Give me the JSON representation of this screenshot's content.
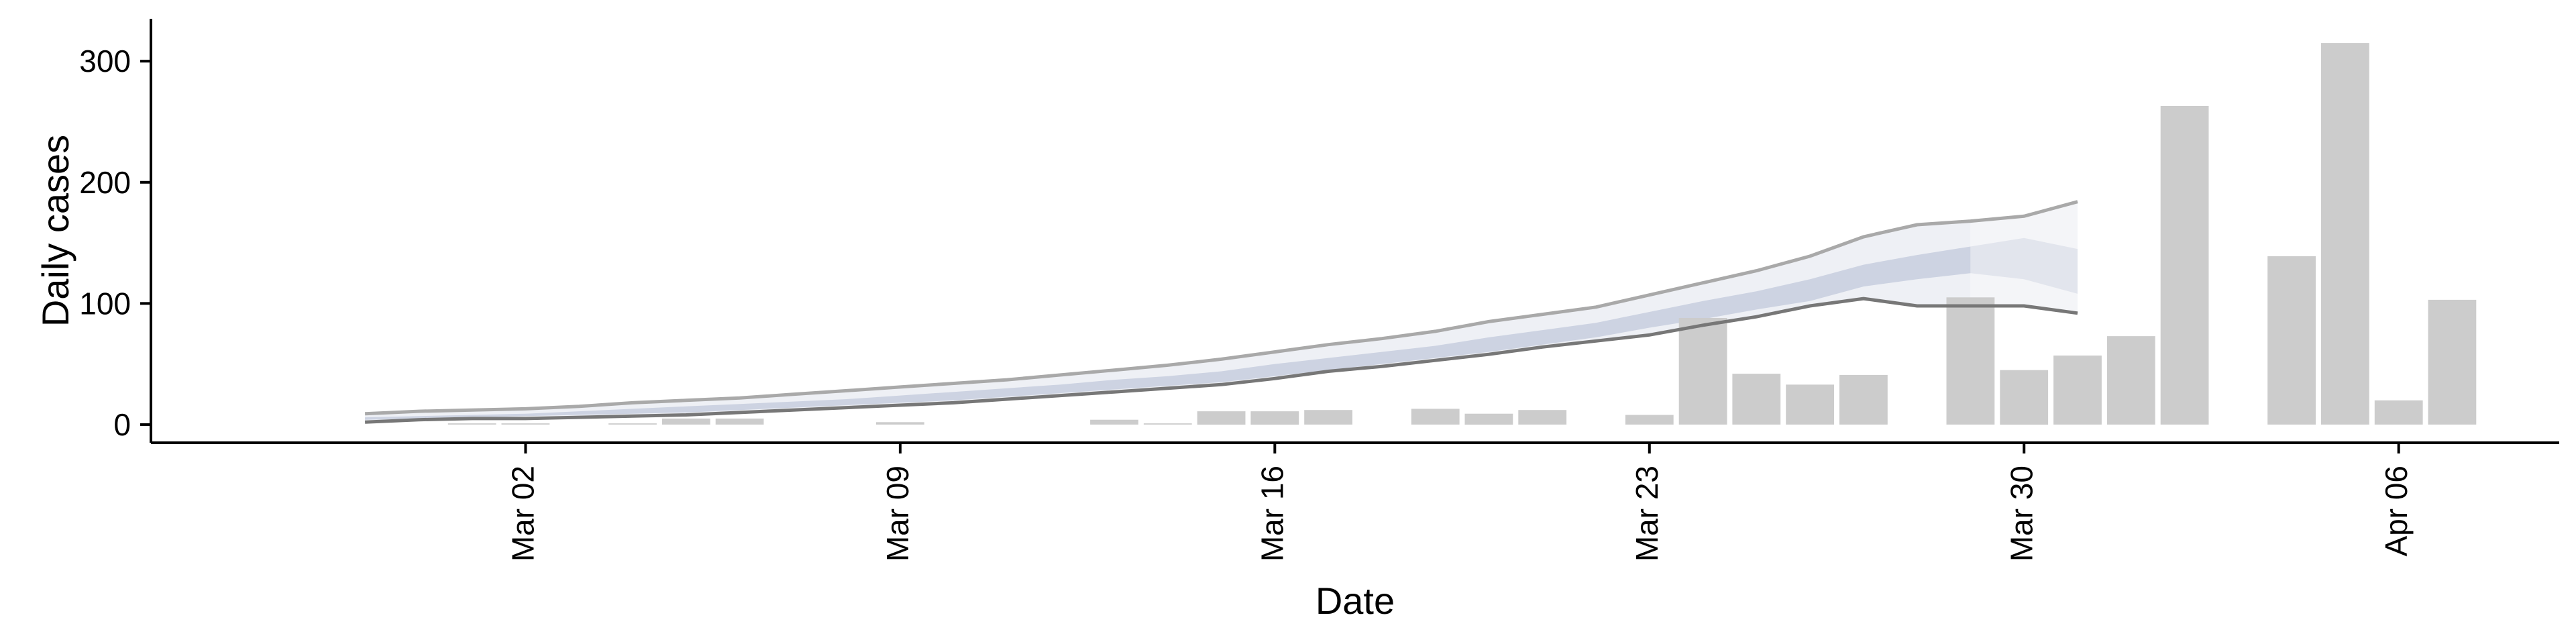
{
  "chart_data": {
    "type": "bar",
    "xlabel": "Date",
    "ylabel": "Daily cases",
    "ylim": [
      -15,
      335
    ],
    "yticks": [
      0,
      100,
      200,
      300
    ],
    "x_tick_labels": [
      {
        "date": "2020-03-02",
        "label": "Mar 02"
      },
      {
        "date": "2020-03-09",
        "label": "Mar 09"
      },
      {
        "date": "2020-03-16",
        "label": "Mar 16"
      },
      {
        "date": "2020-03-23",
        "label": "Mar 23"
      },
      {
        "date": "2020-03-30",
        "label": "Mar 30"
      },
      {
        "date": "2020-04-06",
        "label": "Apr 06"
      }
    ],
    "x_range": [
      "2020-02-24",
      "2020-04-09"
    ],
    "grid": false,
    "colors": {
      "bars": "#cccccc",
      "band_outer": "#eef0f5",
      "band_outer_forecast": "#f4f5f8",
      "band_inner": "#cdd3e2",
      "band_inner_forecast": "#e2e5ed",
      "upper_line": "#a9a9a9",
      "lower_line": "#777777",
      "axis": "#000000"
    },
    "bars": [
      {
        "date": "2020-03-01",
        "value": 1
      },
      {
        "date": "2020-03-02",
        "value": 1
      },
      {
        "date": "2020-03-04",
        "value": 1
      },
      {
        "date": "2020-03-05",
        "value": 5
      },
      {
        "date": "2020-03-06",
        "value": 5
      },
      {
        "date": "2020-03-09",
        "value": 2
      },
      {
        "date": "2020-03-13",
        "value": 4
      },
      {
        "date": "2020-03-14",
        "value": 1
      },
      {
        "date": "2020-03-15",
        "value": 11
      },
      {
        "date": "2020-03-16",
        "value": 11
      },
      {
        "date": "2020-03-17",
        "value": 12
      },
      {
        "date": "2020-03-19",
        "value": 13
      },
      {
        "date": "2020-03-20",
        "value": 9
      },
      {
        "date": "2020-03-21",
        "value": 12
      },
      {
        "date": "2020-03-23",
        "value": 8
      },
      {
        "date": "2020-03-24",
        "value": 88
      },
      {
        "date": "2020-03-25",
        "value": 42
      },
      {
        "date": "2020-03-26",
        "value": 33
      },
      {
        "date": "2020-03-27",
        "value": 41
      },
      {
        "date": "2020-03-29",
        "value": 105
      },
      {
        "date": "2020-03-30",
        "value": 45
      },
      {
        "date": "2020-03-31",
        "value": 57
      },
      {
        "date": "2020-04-01",
        "value": 73
      },
      {
        "date": "2020-04-02",
        "value": 263
      },
      {
        "date": "2020-04-04",
        "value": 139
      },
      {
        "date": "2020-04-05",
        "value": 315
      },
      {
        "date": "2020-04-06",
        "value": 20
      },
      {
        "date": "2020-04-07",
        "value": 103
      }
    ],
    "estimate_band": {
      "dates": [
        "2020-02-28",
        "2020-02-29",
        "2020-03-01",
        "2020-03-02",
        "2020-03-03",
        "2020-03-04",
        "2020-03-05",
        "2020-03-06",
        "2020-03-07",
        "2020-03-08",
        "2020-03-09",
        "2020-03-10",
        "2020-03-11",
        "2020-03-12",
        "2020-03-13",
        "2020-03-14",
        "2020-03-15",
        "2020-03-16",
        "2020-03-17",
        "2020-03-18",
        "2020-03-19",
        "2020-03-20",
        "2020-03-21",
        "2020-03-22",
        "2020-03-23",
        "2020-03-24",
        "2020-03-25",
        "2020-03-26",
        "2020-03-27",
        "2020-03-28",
        "2020-03-29"
      ],
      "upper90": [
        9,
        11,
        12,
        13,
        15,
        18,
        20,
        22,
        25,
        28,
        31,
        34,
        37,
        41,
        45,
        49,
        54,
        60,
        66,
        71,
        77,
        85,
        91,
        97,
        107,
        117,
        127,
        139,
        155,
        165,
        168
      ],
      "upper50": [
        6,
        7,
        8,
        9,
        11,
        13,
        15,
        17,
        19,
        21,
        24,
        27,
        30,
        33,
        37,
        40,
        44,
        50,
        55,
        60,
        65,
        72,
        78,
        84,
        93,
        102,
        110,
        120,
        132,
        140,
        147
      ],
      "lower50": [
        4,
        5,
        6,
        7,
        8,
        9,
        10,
        12,
        14,
        16,
        18,
        20,
        23,
        26,
        29,
        32,
        35,
        40,
        45,
        50,
        55,
        60,
        66,
        72,
        80,
        87,
        95,
        102,
        114,
        120,
        125
      ],
      "lower90": [
        2,
        4,
        5,
        5,
        6,
        7,
        8,
        10,
        12,
        14,
        16,
        18,
        21,
        24,
        27,
        30,
        33,
        38,
        44,
        48,
        53,
        58,
        64,
        69,
        74,
        82,
        89,
        98,
        104,
        98,
        98
      ]
    },
    "forecast_band": {
      "dates": [
        "2020-03-29",
        "2020-03-30",
        "2020-03-31"
      ],
      "upper90": [
        168,
        172,
        184
      ],
      "upper50": [
        147,
        154,
        145
      ],
      "lower50": [
        125,
        120,
        108
      ],
      "lower90": [
        98,
        98,
        92
      ]
    }
  }
}
